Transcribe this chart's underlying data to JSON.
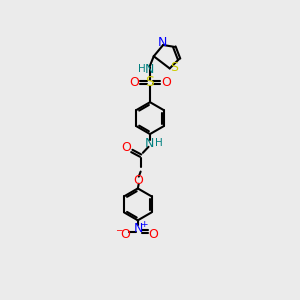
{
  "bg_color": "#ebebeb",
  "bond_color": "#000000",
  "N_color": "#0000ff",
  "O_color": "#ff0000",
  "S_color": "#cccc00",
  "NH_color": "#008080",
  "xlim": [
    0,
    10
  ],
  "ylim": [
    0,
    16
  ],
  "figsize": [
    3.0,
    3.0
  ],
  "dpi": 100
}
